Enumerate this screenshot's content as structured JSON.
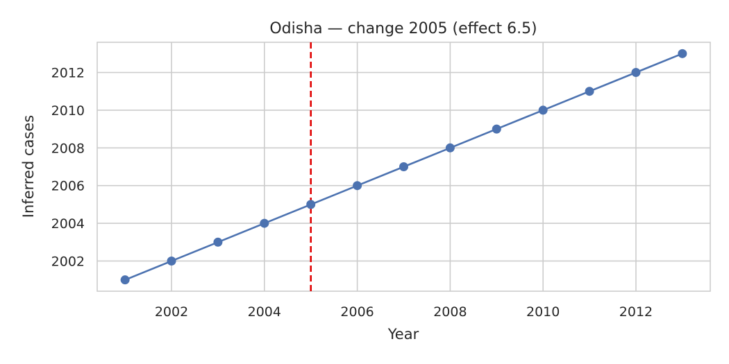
{
  "chart_data": {
    "type": "line",
    "title": "Odisha — change 2005 (effect 6.5)",
    "xlabel": "Year",
    "ylabel": "Inferred cases",
    "x": [
      2001,
      2002,
      2003,
      2004,
      2005,
      2006,
      2007,
      2008,
      2009,
      2010,
      2011,
      2012,
      2013
    ],
    "series": [
      {
        "name": "",
        "color": "#4c72b0",
        "values": [
          2001,
          2002,
          2003,
          2004,
          2005,
          2006,
          2007,
          2008,
          2009,
          2010,
          2011,
          2012,
          2013
        ]
      }
    ],
    "xlim": [
      2000.4,
      2013.6
    ],
    "ylim": [
      2000.4,
      2013.6
    ],
    "xticks": [
      "2002",
      "2004",
      "2006",
      "2008",
      "2010",
      "2012"
    ],
    "yticks": [
      "2002",
      "2004",
      "2006",
      "2008",
      "2010",
      "2012"
    ],
    "grid": true,
    "change_point": {
      "x": 2005,
      "color": "#e00000",
      "style": "dashed"
    }
  }
}
